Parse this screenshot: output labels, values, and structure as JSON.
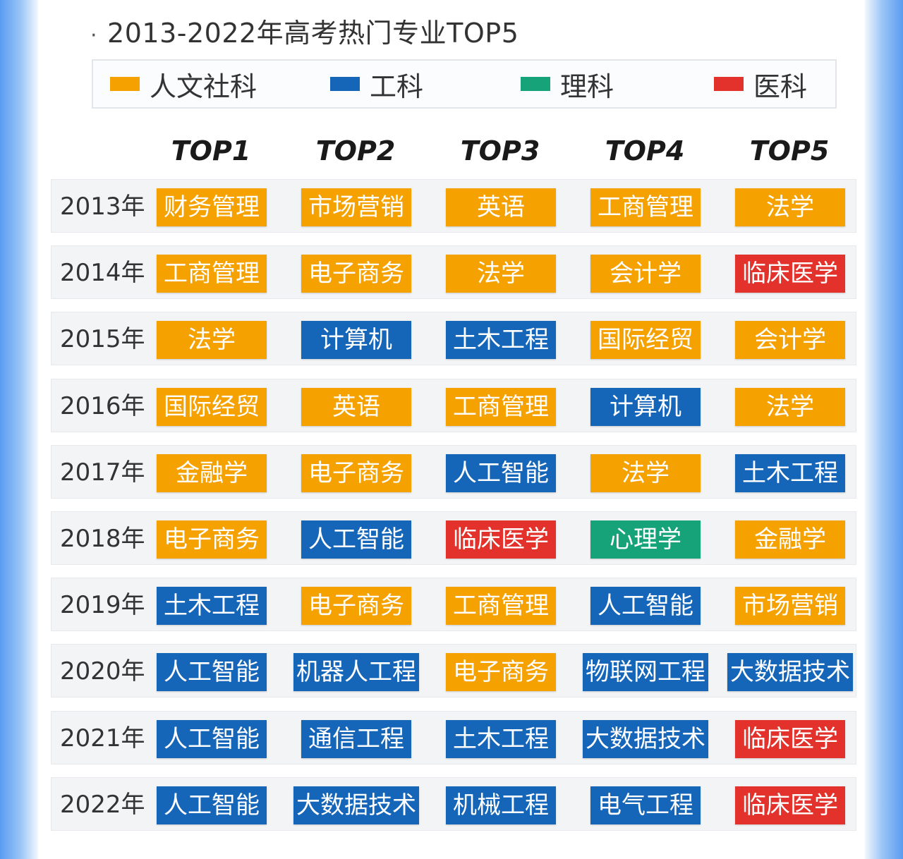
{
  "chart_data": {
    "type": "table",
    "title": "2013-2022年高考热门专业TOP5",
    "legend": [
      {
        "key": "humanities",
        "label": "人文社科",
        "color": "#f5a100"
      },
      {
        "key": "engineering",
        "label": "工科",
        "color": "#1565b8"
      },
      {
        "key": "science",
        "label": "理科",
        "color": "#16a37a"
      },
      {
        "key": "medicine",
        "label": "医科",
        "color": "#e2322b"
      }
    ],
    "columns": [
      "TOP1",
      "TOP2",
      "TOP3",
      "TOP4",
      "TOP5"
    ],
    "rows": [
      {
        "year": "2013年",
        "majors": [
          {
            "name": "财务管理",
            "category": "humanities"
          },
          {
            "name": "市场营销",
            "category": "humanities"
          },
          {
            "name": "英语",
            "category": "humanities"
          },
          {
            "name": "工商管理",
            "category": "humanities"
          },
          {
            "name": "法学",
            "category": "humanities"
          }
        ]
      },
      {
        "year": "2014年",
        "majors": [
          {
            "name": "工商管理",
            "category": "humanities"
          },
          {
            "name": "电子商务",
            "category": "humanities"
          },
          {
            "name": "法学",
            "category": "humanities"
          },
          {
            "name": "会计学",
            "category": "humanities"
          },
          {
            "name": "临床医学",
            "category": "medicine"
          }
        ]
      },
      {
        "year": "2015年",
        "majors": [
          {
            "name": "法学",
            "category": "humanities"
          },
          {
            "name": "计算机",
            "category": "engineering"
          },
          {
            "name": "土木工程",
            "category": "engineering"
          },
          {
            "name": "国际经贸",
            "category": "humanities"
          },
          {
            "name": "会计学",
            "category": "humanities"
          }
        ]
      },
      {
        "year": "2016年",
        "majors": [
          {
            "name": "国际经贸",
            "category": "humanities"
          },
          {
            "name": "英语",
            "category": "humanities"
          },
          {
            "name": "工商管理",
            "category": "humanities"
          },
          {
            "name": "计算机",
            "category": "engineering"
          },
          {
            "name": "法学",
            "category": "humanities"
          }
        ]
      },
      {
        "year": "2017年",
        "majors": [
          {
            "name": "金融学",
            "category": "humanities"
          },
          {
            "name": "电子商务",
            "category": "humanities"
          },
          {
            "name": "人工智能",
            "category": "engineering"
          },
          {
            "name": "法学",
            "category": "humanities"
          },
          {
            "name": "土木工程",
            "category": "engineering"
          }
        ]
      },
      {
        "year": "2018年",
        "majors": [
          {
            "name": "电子商务",
            "category": "humanities"
          },
          {
            "name": "人工智能",
            "category": "engineering"
          },
          {
            "name": "临床医学",
            "category": "medicine"
          },
          {
            "name": "心理学",
            "category": "science"
          },
          {
            "name": "金融学",
            "category": "humanities"
          }
        ]
      },
      {
        "year": "2019年",
        "majors": [
          {
            "name": "土木工程",
            "category": "engineering"
          },
          {
            "name": "电子商务",
            "category": "humanities"
          },
          {
            "name": "工商管理",
            "category": "humanities"
          },
          {
            "name": "人工智能",
            "category": "engineering"
          },
          {
            "name": "市场营销",
            "category": "humanities"
          }
        ]
      },
      {
        "year": "2020年",
        "majors": [
          {
            "name": "人工智能",
            "category": "engineering"
          },
          {
            "name": "机器人工程",
            "category": "engineering"
          },
          {
            "name": "电子商务",
            "category": "humanities"
          },
          {
            "name": "物联网工程",
            "category": "engineering"
          },
          {
            "name": "大数据技术",
            "category": "engineering"
          }
        ]
      },
      {
        "year": "2021年",
        "majors": [
          {
            "name": "人工智能",
            "category": "engineering"
          },
          {
            "name": "通信工程",
            "category": "engineering"
          },
          {
            "name": "土木工程",
            "category": "engineering"
          },
          {
            "name": "大数据技术",
            "category": "engineering"
          },
          {
            "name": "临床医学",
            "category": "medicine"
          }
        ]
      },
      {
        "year": "2022年",
        "majors": [
          {
            "name": "人工智能",
            "category": "engineering"
          },
          {
            "name": "大数据技术",
            "category": "engineering"
          },
          {
            "name": "机械工程",
            "category": "engineering"
          },
          {
            "name": "电气工程",
            "category": "engineering"
          },
          {
            "name": "临床医学",
            "category": "medicine"
          }
        ]
      }
    ]
  }
}
